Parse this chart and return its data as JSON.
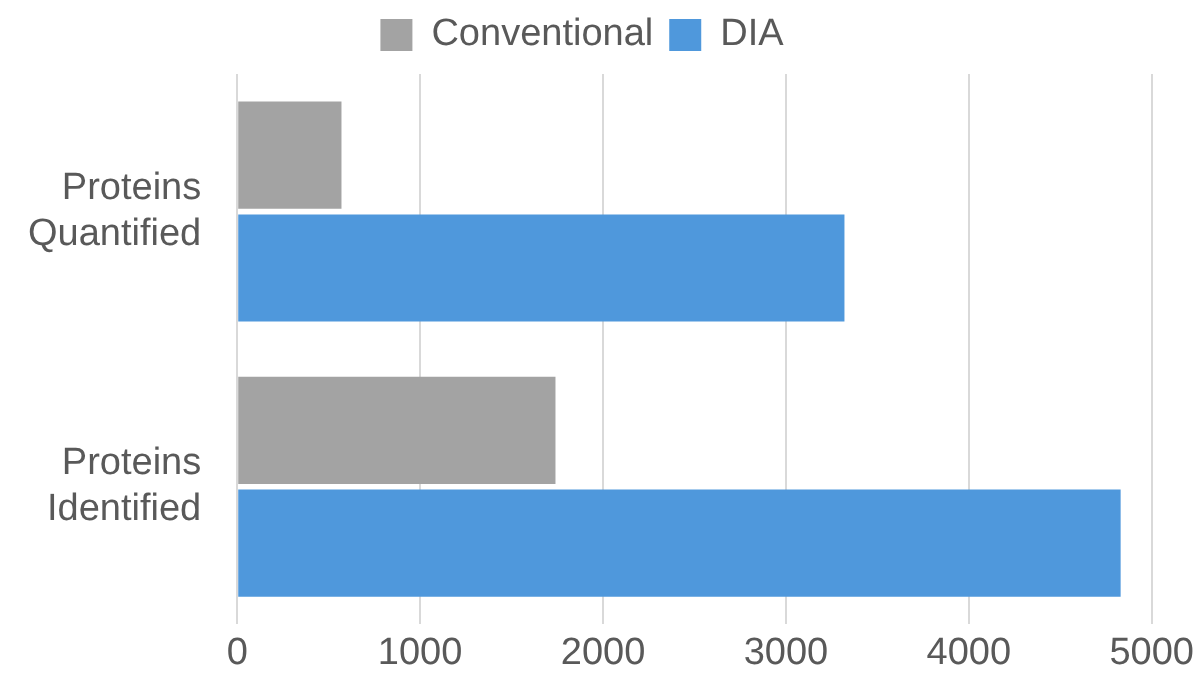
{
  "chart_data": {
    "type": "bar",
    "orientation": "horizontal",
    "categories": [
      "Proteins Quantified",
      "Proteins Identified"
    ],
    "series": [
      {
        "name": "Conventional",
        "color": "#a3a3a3",
        "values": [
          570,
          1740
        ]
      },
      {
        "name": "DIA",
        "color": "#4f98dc",
        "values": [
          3320,
          4830
        ]
      }
    ],
    "xlim": [
      0,
      5000
    ],
    "xticks": [
      0,
      1000,
      2000,
      3000,
      4000,
      5000
    ],
    "grid": "x",
    "legend": "top"
  }
}
